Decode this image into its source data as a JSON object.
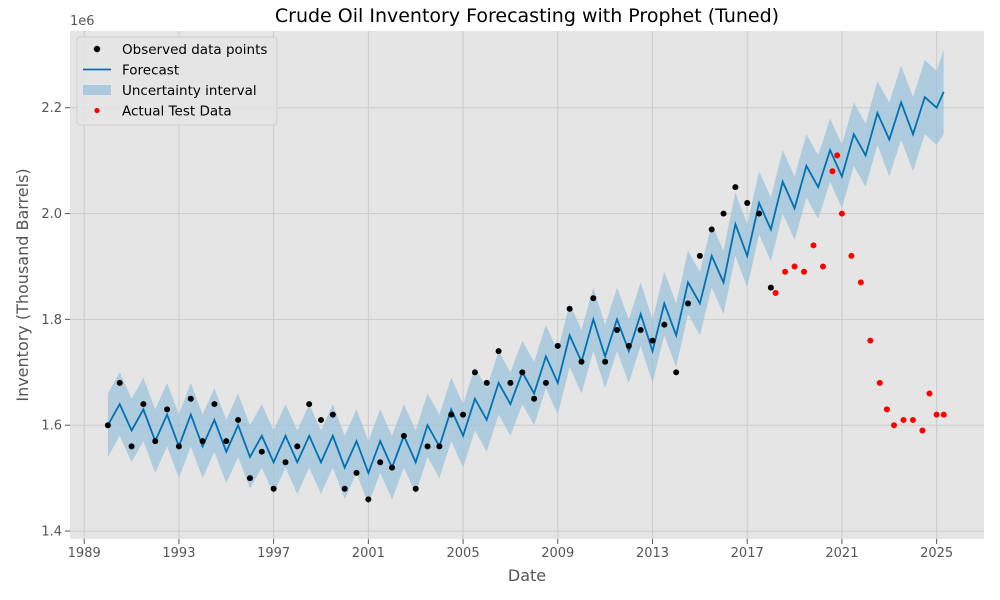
{
  "chart_data": {
    "type": "line",
    "title": "Crude Oil Inventory Forecasting with Prophet (Tuned)",
    "xlabel": "Date",
    "ylabel": "Inventory (Thousand Barrels)",
    "y_scale_label": "1e6",
    "xlim": [
      1988.4,
      2027.0
    ],
    "ylim": [
      1.385,
      2.345
    ],
    "x_ticks": [
      1989,
      1993,
      1997,
      2001,
      2005,
      2009,
      2013,
      2017,
      2021,
      2025
    ],
    "x_tick_labels": [
      "1989",
      "1993",
      "1997",
      "2001",
      "2005",
      "2009",
      "2013",
      "2017",
      "2021",
      "2025"
    ],
    "y_ticks": [
      1.4,
      1.6,
      1.8,
      2.0,
      2.2
    ],
    "y_tick_labels": [
      "1.4",
      "1.6",
      "1.8",
      "2.0",
      "2.2"
    ],
    "grid": true,
    "legend_position": "top-left",
    "colors": {
      "observed": "#000000",
      "forecast": "#0072B2",
      "uncertainty": "#9CC3DC",
      "actual_test": "#FF0000",
      "plot_bg": "#E5E5E5",
      "grid": "#CBCBCB"
    },
    "legend": [
      {
        "label": "Observed data points",
        "kind": "dot",
        "color": "#000000"
      },
      {
        "label": "Forecast",
        "kind": "line",
        "color": "#0072B2"
      },
      {
        "label": "Uncertainty interval",
        "kind": "patch",
        "color": "#9CC3DC"
      },
      {
        "label": "Actual Test Data",
        "kind": "dot",
        "color": "#FF0000"
      }
    ],
    "series": [
      {
        "name": "Observed data points",
        "role": "observed",
        "x": [
          1990.0,
          1990.5,
          1991.0,
          1991.5,
          1992.0,
          1992.5,
          1993.0,
          1993.5,
          1994.0,
          1994.5,
          1995.0,
          1995.5,
          1996.0,
          1996.5,
          1997.0,
          1997.5,
          1998.0,
          1998.5,
          1999.0,
          1999.5,
          2000.0,
          2000.5,
          2001.0,
          2001.5,
          2002.0,
          2002.5,
          2003.0,
          2003.5,
          2004.0,
          2004.5,
          2005.0,
          2005.5,
          2006.0,
          2006.5,
          2007.0,
          2007.5,
          2008.0,
          2008.5,
          2009.0,
          2009.5,
          2010.0,
          2010.5,
          2011.0,
          2011.5,
          2012.0,
          2012.5,
          2013.0,
          2013.5,
          2014.0,
          2014.5,
          2015.0,
          2015.5,
          2016.0,
          2016.5,
          2017.0,
          2017.5,
          2018.0
        ],
        "y": [
          1.6,
          1.68,
          1.56,
          1.64,
          1.57,
          1.63,
          1.56,
          1.65,
          1.57,
          1.64,
          1.57,
          1.61,
          1.5,
          1.55,
          1.48,
          1.53,
          1.56,
          1.64,
          1.61,
          1.62,
          1.48,
          1.51,
          1.46,
          1.53,
          1.52,
          1.58,
          1.48,
          1.56,
          1.56,
          1.62,
          1.62,
          1.7,
          1.68,
          1.74,
          1.68,
          1.7,
          1.65,
          1.68,
          1.75,
          1.82,
          1.72,
          1.84,
          1.72,
          1.78,
          1.75,
          1.78,
          1.76,
          1.79,
          1.7,
          1.83,
          1.92,
          1.97,
          2.0,
          2.05,
          2.02,
          2.0,
          1.86
        ]
      },
      {
        "name": "Forecast",
        "role": "forecast",
        "x": [
          1990.0,
          1990.5,
          1991.0,
          1991.5,
          1992.0,
          1992.5,
          1993.0,
          1993.5,
          1994.0,
          1994.5,
          1995.0,
          1995.5,
          1996.0,
          1996.5,
          1997.0,
          1997.5,
          1998.0,
          1998.5,
          1999.0,
          1999.5,
          2000.0,
          2000.5,
          2001.0,
          2001.5,
          2002.0,
          2002.5,
          2003.0,
          2003.5,
          2004.0,
          2004.5,
          2005.0,
          2005.5,
          2006.0,
          2006.5,
          2007.0,
          2007.5,
          2008.0,
          2008.5,
          2009.0,
          2009.5,
          2010.0,
          2010.5,
          2011.0,
          2011.5,
          2012.0,
          2012.5,
          2013.0,
          2013.5,
          2014.0,
          2014.5,
          2015.0,
          2015.5,
          2016.0,
          2016.5,
          2017.0,
          2017.5,
          2018.0,
          2018.5,
          2019.0,
          2019.5,
          2020.0,
          2020.5,
          2021.0,
          2021.5,
          2022.0,
          2022.5,
          2023.0,
          2023.5,
          2024.0,
          2024.5,
          2025.0,
          2025.3
        ],
        "y": [
          1.6,
          1.64,
          1.59,
          1.63,
          1.57,
          1.62,
          1.56,
          1.62,
          1.56,
          1.61,
          1.55,
          1.6,
          1.54,
          1.58,
          1.53,
          1.58,
          1.53,
          1.58,
          1.53,
          1.58,
          1.52,
          1.57,
          1.51,
          1.57,
          1.52,
          1.58,
          1.53,
          1.6,
          1.56,
          1.63,
          1.58,
          1.65,
          1.61,
          1.68,
          1.64,
          1.7,
          1.66,
          1.73,
          1.68,
          1.77,
          1.72,
          1.8,
          1.73,
          1.8,
          1.74,
          1.81,
          1.74,
          1.83,
          1.77,
          1.87,
          1.83,
          1.92,
          1.87,
          1.98,
          1.92,
          2.02,
          1.97,
          2.06,
          2.01,
          2.09,
          2.05,
          2.12,
          2.07,
          2.15,
          2.11,
          2.19,
          2.14,
          2.21,
          2.15,
          2.22,
          2.2,
          2.23
        ]
      },
      {
        "name": "Uncertainty interval",
        "role": "band",
        "x": [
          1990.0,
          1990.5,
          1991.0,
          1991.5,
          1992.0,
          1992.5,
          1993.0,
          1993.5,
          1994.0,
          1994.5,
          1995.0,
          1995.5,
          1996.0,
          1996.5,
          1997.0,
          1997.5,
          1998.0,
          1998.5,
          1999.0,
          1999.5,
          2000.0,
          2000.5,
          2001.0,
          2001.5,
          2002.0,
          2002.5,
          2003.0,
          2003.5,
          2004.0,
          2004.5,
          2005.0,
          2005.5,
          2006.0,
          2006.5,
          2007.0,
          2007.5,
          2008.0,
          2008.5,
          2009.0,
          2009.5,
          2010.0,
          2010.5,
          2011.0,
          2011.5,
          2012.0,
          2012.5,
          2013.0,
          2013.5,
          2014.0,
          2014.5,
          2015.0,
          2015.5,
          2016.0,
          2016.5,
          2017.0,
          2017.5,
          2018.0,
          2018.5,
          2019.0,
          2019.5,
          2020.0,
          2020.5,
          2021.0,
          2021.5,
          2022.0,
          2022.5,
          2023.0,
          2023.5,
          2024.0,
          2024.5,
          2025.0,
          2025.3
        ],
        "lower": [
          1.54,
          1.58,
          1.53,
          1.57,
          1.51,
          1.56,
          1.5,
          1.56,
          1.5,
          1.55,
          1.49,
          1.54,
          1.48,
          1.52,
          1.47,
          1.52,
          1.47,
          1.52,
          1.47,
          1.52,
          1.46,
          1.51,
          1.45,
          1.51,
          1.46,
          1.52,
          1.47,
          1.54,
          1.5,
          1.57,
          1.52,
          1.59,
          1.55,
          1.62,
          1.58,
          1.64,
          1.6,
          1.67,
          1.62,
          1.71,
          1.66,
          1.74,
          1.67,
          1.74,
          1.68,
          1.75,
          1.68,
          1.77,
          1.71,
          1.81,
          1.77,
          1.86,
          1.81,
          1.92,
          1.86,
          1.96,
          1.91,
          2.0,
          1.95,
          2.03,
          1.99,
          2.06,
          2.01,
          2.09,
          2.05,
          2.13,
          2.07,
          2.14,
          2.08,
          2.15,
          2.13,
          2.15
        ],
        "upper": [
          1.66,
          1.7,
          1.65,
          1.69,
          1.63,
          1.68,
          1.62,
          1.68,
          1.62,
          1.67,
          1.61,
          1.66,
          1.6,
          1.64,
          1.59,
          1.64,
          1.59,
          1.64,
          1.59,
          1.64,
          1.58,
          1.63,
          1.57,
          1.63,
          1.58,
          1.64,
          1.59,
          1.66,
          1.62,
          1.69,
          1.64,
          1.71,
          1.67,
          1.74,
          1.7,
          1.76,
          1.72,
          1.79,
          1.74,
          1.83,
          1.78,
          1.86,
          1.79,
          1.86,
          1.8,
          1.87,
          1.8,
          1.89,
          1.83,
          1.93,
          1.89,
          1.98,
          1.93,
          2.04,
          1.98,
          2.08,
          2.03,
          2.12,
          2.07,
          2.15,
          2.11,
          2.18,
          2.13,
          2.21,
          2.17,
          2.25,
          2.21,
          2.28,
          2.22,
          2.29,
          2.27,
          2.31
        ]
      },
      {
        "name": "Actual Test Data",
        "role": "actual",
        "x": [
          2018.2,
          2018.6,
          2019.0,
          2019.4,
          2019.8,
          2020.2,
          2020.6,
          2020.8,
          2021.0,
          2021.4,
          2021.8,
          2022.2,
          2022.6,
          2022.9,
          2023.2,
          2023.6,
          2024.0,
          2024.4,
          2024.7,
          2025.0,
          2025.3
        ],
        "y": [
          1.85,
          1.89,
          1.9,
          1.89,
          1.94,
          1.9,
          2.08,
          2.11,
          2.0,
          1.92,
          1.87,
          1.76,
          1.68,
          1.63,
          1.6,
          1.61,
          1.61,
          1.59,
          1.66,
          1.62,
          1.62
        ]
      }
    ]
  }
}
